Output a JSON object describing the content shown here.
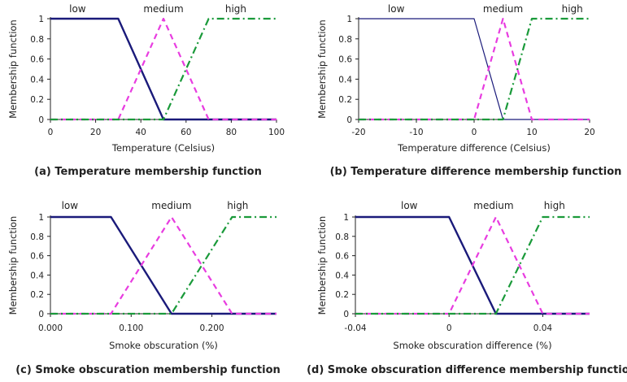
{
  "chart_data": [
    {
      "type": "line",
      "caption": "(a) Temperature membership function",
      "xlabel": "Temperature (Celsius)",
      "ylabel": "Membership function",
      "xlim": [
        0,
        100
      ],
      "ylim": [
        0,
        1
      ],
      "xticks": [
        0,
        20,
        40,
        60,
        80,
        100
      ],
      "xtick_labels": [
        "0",
        "20",
        "40",
        "60",
        "80",
        "100"
      ],
      "yticks": [
        0,
        0.2,
        0.4,
        0.6,
        0.8,
        1
      ],
      "ytick_labels": [
        "0",
        "0.2",
        "0.4",
        "0.6",
        "0.8",
        "1"
      ],
      "series": [
        {
          "name": "low",
          "color": "#1a1a7a",
          "style": "solid",
          "x": [
            0,
            30,
            50,
            100
          ],
          "y": [
            1,
            1,
            0,
            0
          ]
        },
        {
          "name": "medium",
          "color": "#e83ce0",
          "style": "dash",
          "x": [
            0,
            30,
            50,
            70,
            100
          ],
          "y": [
            0,
            0,
            1,
            0,
            0
          ]
        },
        {
          "name": "high",
          "color": "#1a9a3a",
          "style": "dashdot",
          "x": [
            0,
            50,
            70,
            100
          ],
          "y": [
            0,
            0,
            1,
            1
          ]
        }
      ],
      "label_positions": [
        12,
        50,
        82
      ]
    },
    {
      "type": "line",
      "caption": "(b) Temperature difference membership function",
      "xlabel": "Temperature difference (Celsius)",
      "ylabel": "Membership function",
      "xlim": [
        -20,
        20
      ],
      "ylim": [
        0,
        1
      ],
      "xticks": [
        -20,
        -10,
        0,
        10,
        20
      ],
      "xtick_labels": [
        "-20",
        "-10",
        "0",
        "10",
        "20"
      ],
      "yticks": [
        0,
        0.2,
        0.4,
        0.6,
        0.8,
        1
      ],
      "ytick_labels": [
        "0",
        "0.2",
        "0.4",
        "0.6",
        "0.8",
        "1"
      ],
      "series": [
        {
          "name": "low",
          "color": "#1a1a7a",
          "style": "thin",
          "x": [
            -20,
            0,
            5,
            20
          ],
          "y": [
            1,
            1,
            0,
            0
          ]
        },
        {
          "name": "medium",
          "color": "#e83ce0",
          "style": "dash",
          "x": [
            -20,
            0,
            5,
            10,
            20
          ],
          "y": [
            0,
            0,
            1,
            0,
            0
          ]
        },
        {
          "name": "high",
          "color": "#1a9a3a",
          "style": "dashdot",
          "x": [
            -20,
            5,
            10,
            20
          ],
          "y": [
            0,
            0,
            1,
            1
          ]
        }
      ],
      "label_positions": [
        -13.5,
        5,
        17
      ]
    },
    {
      "type": "line",
      "caption": "(c) Smoke obscuration membership function",
      "xlabel": "Smoke obscuration (%)",
      "ylabel": "Membership function",
      "xlim": [
        0,
        0.28
      ],
      "ylim": [
        0,
        1
      ],
      "xticks": [
        0,
        0.1,
        0.2
      ],
      "xtick_labels": [
        "0.000",
        "0.100",
        "0.200"
      ],
      "yticks": [
        0,
        0.2,
        0.4,
        0.6,
        0.8,
        1
      ],
      "ytick_labels": [
        "0",
        "0.2",
        "0.4",
        "0.6",
        "0.8",
        "1"
      ],
      "series": [
        {
          "name": "low",
          "color": "#1a1a7a",
          "style": "solid",
          "x": [
            0,
            0.075,
            0.15,
            0.28
          ],
          "y": [
            1,
            1,
            0,
            0
          ]
        },
        {
          "name": "medium",
          "color": "#e83ce0",
          "style": "dash",
          "x": [
            0,
            0.075,
            0.15,
            0.225,
            0.28
          ],
          "y": [
            0,
            0,
            1,
            0,
            0
          ]
        },
        {
          "name": "high",
          "color": "#1a9a3a",
          "style": "dashdot",
          "x": [
            0,
            0.15,
            0.225,
            0.28
          ],
          "y": [
            0,
            0,
            1,
            1
          ]
        }
      ],
      "label_positions": [
        0.024,
        0.15,
        0.232
      ]
    },
    {
      "type": "line",
      "caption": "(d) Smoke obscuration difference membership function",
      "xlabel": "Smoke obscuration difference (%)",
      "ylabel": "Membership function",
      "xlim": [
        -0.04,
        0.06
      ],
      "ylim": [
        0,
        1
      ],
      "xticks": [
        -0.04,
        0,
        0.04
      ],
      "xtick_labels": [
        "-0.04",
        "0",
        "0.04"
      ],
      "yticks": [
        0,
        0.2,
        0.4,
        0.6,
        0.8,
        1
      ],
      "ytick_labels": [
        "0",
        "0.2",
        "0.4",
        "0.6",
        "0.8",
        "1"
      ],
      "series": [
        {
          "name": "low",
          "color": "#1a1a7a",
          "style": "solid",
          "x": [
            -0.04,
            0,
            0.02,
            0.06
          ],
          "y": [
            1,
            1,
            0,
            0
          ]
        },
        {
          "name": "medium",
          "color": "#e83ce0",
          "style": "dash",
          "x": [
            -0.04,
            0,
            0.02,
            0.04,
            0.06
          ],
          "y": [
            0,
            0,
            1,
            0,
            0
          ]
        },
        {
          "name": "high",
          "color": "#1a9a3a",
          "style": "dashdot",
          "x": [
            -0.04,
            0.02,
            0.04,
            0.06
          ],
          "y": [
            0,
            0,
            1,
            1
          ]
        }
      ],
      "label_positions": [
        -0.017,
        0.019,
        0.045
      ]
    }
  ]
}
